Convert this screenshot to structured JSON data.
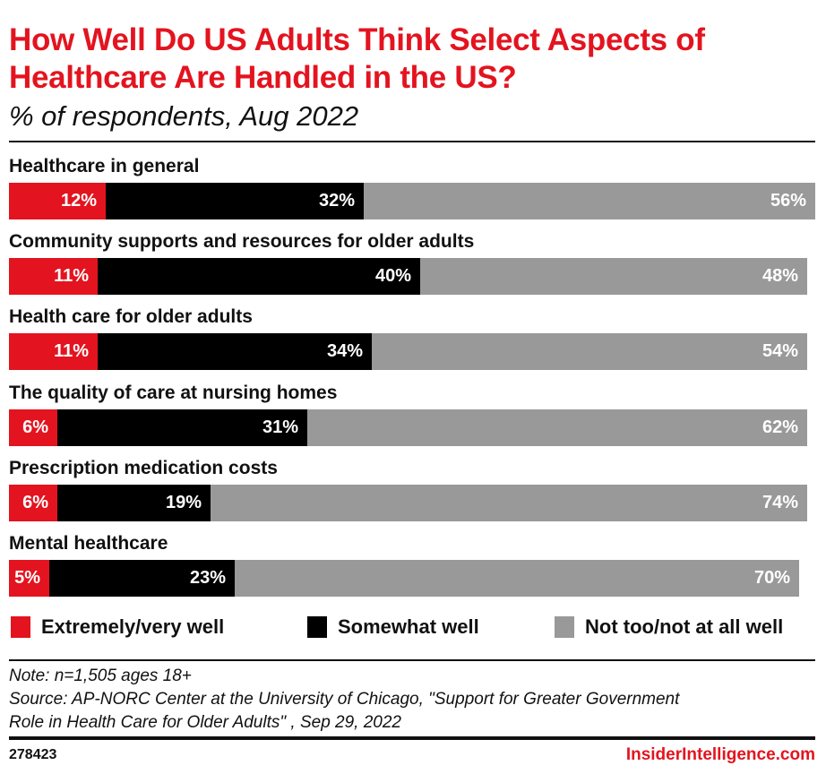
{
  "chart_data": {
    "type": "bar",
    "orientation": "horizontal",
    "stacked": true,
    "title": "How Well Do US Adults Think Select Aspects of Healthcare Are Handled in the US?",
    "subtitle": "% of respondents, Aug 2022",
    "categories": [
      "Healthcare in general",
      "Community supports and resources for older adults",
      "Health care for older adults",
      "The quality of care at nursing homes",
      "Prescription medication costs",
      "Mental healthcare"
    ],
    "series": [
      {
        "name": "Extremely/very well",
        "color": "#e3141f",
        "values": [
          12,
          11,
          11,
          6,
          6,
          5
        ]
      },
      {
        "name": "Somewhat well",
        "color": "#000000",
        "values": [
          32,
          40,
          34,
          31,
          19,
          23
        ]
      },
      {
        "name": "Not too/not at all well",
        "color": "#999999",
        "values": [
          56,
          48,
          54,
          62,
          74,
          70
        ]
      }
    ],
    "value_suffix": "%",
    "xlim": [
      0,
      100
    ],
    "grid": false,
    "legend_position": "bottom"
  },
  "note": "Note: n=1,505 ages 18+",
  "source_line1": "Source: AP-NORC Center at the University of Chicago, \"Support for Greater Government",
  "source_line2": "Role in Health Care for Older Adults\" , Sep 29, 2022",
  "footer": {
    "id": "278423",
    "brand": "InsiderIntelligence.com"
  }
}
